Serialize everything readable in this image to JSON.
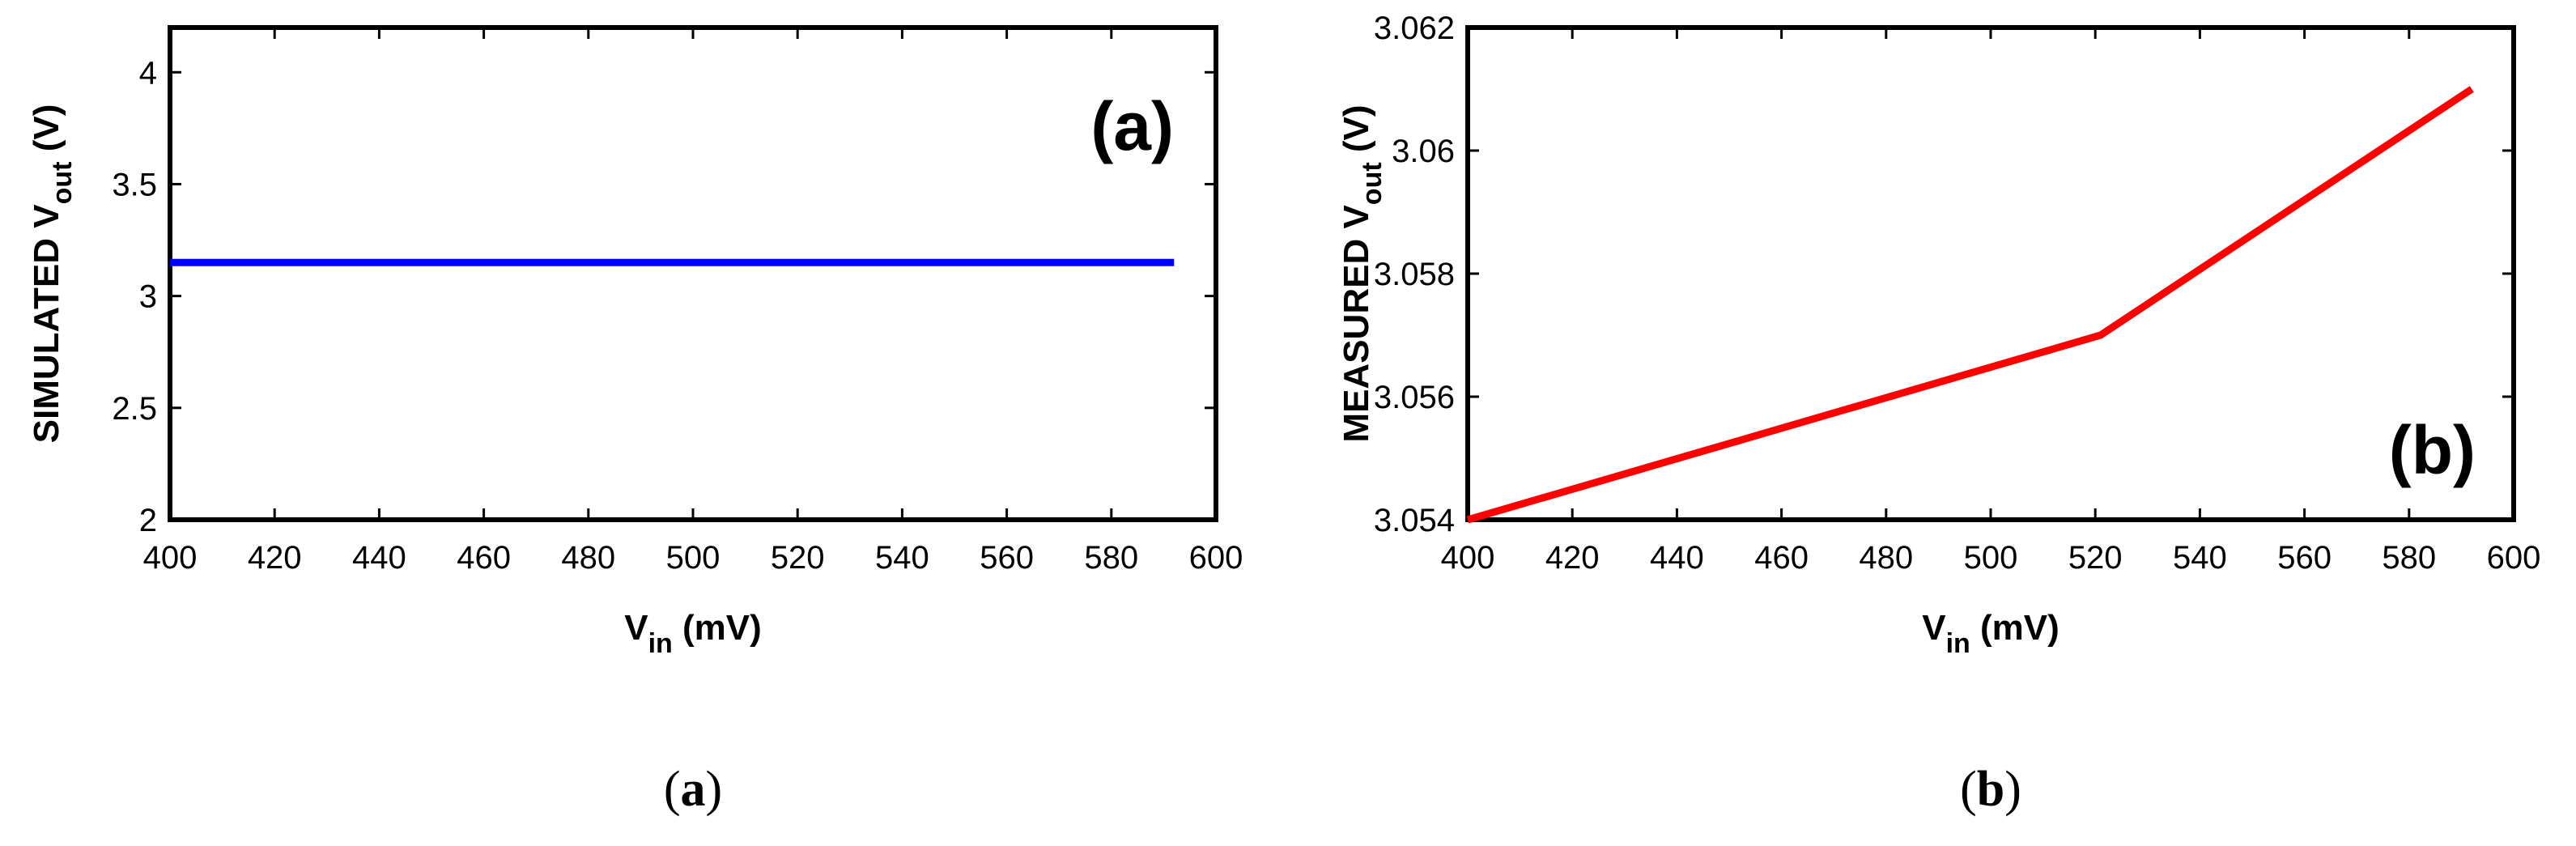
{
  "chart_data": [
    {
      "type": "line",
      "panel_label": "(a)",
      "caption_letter": "a",
      "xlabel_main": "V",
      "xlabel_sub": "in",
      "xlabel_unit": " (mV)",
      "ylabel_main": "SIMULATED V",
      "ylabel_sub": "out",
      "ylabel_unit": "  (V)",
      "xlim": [
        400,
        600
      ],
      "ylim": [
        2,
        4.2
      ],
      "xticks": [
        400,
        420,
        440,
        460,
        480,
        500,
        520,
        540,
        560,
        580,
        600
      ],
      "yticks": [
        2,
        2.5,
        3,
        3.5,
        4
      ],
      "ytick_labels": [
        "2",
        "2.5",
        "3",
        "3.5",
        "4"
      ],
      "series": [
        {
          "color": "#0000ff",
          "x": [
            400,
            592
          ],
          "y": [
            3.15,
            3.15
          ]
        }
      ]
    },
    {
      "type": "line",
      "panel_label": "(b)",
      "caption_letter": "b",
      "xlabel_main": "V",
      "xlabel_sub": "in",
      "xlabel_unit": " (mV)",
      "ylabel_main": "MEASURED V",
      "ylabel_sub": "out",
      "ylabel_unit": "  (V)",
      "xlim": [
        400,
        600
      ],
      "ylim": [
        3.054,
        3.062
      ],
      "xticks": [
        400,
        420,
        440,
        460,
        480,
        500,
        520,
        540,
        560,
        580,
        600
      ],
      "yticks": [
        3.054,
        3.056,
        3.058,
        3.06,
        3.062
      ],
      "ytick_labels": [
        "3.054",
        "3.056",
        "3.058",
        "3.06",
        "3.062"
      ],
      "series": [
        {
          "color": "#ff0000",
          "x": [
            400,
            521,
            592
          ],
          "y": [
            3.054,
            3.057,
            3.061
          ]
        }
      ]
    }
  ]
}
